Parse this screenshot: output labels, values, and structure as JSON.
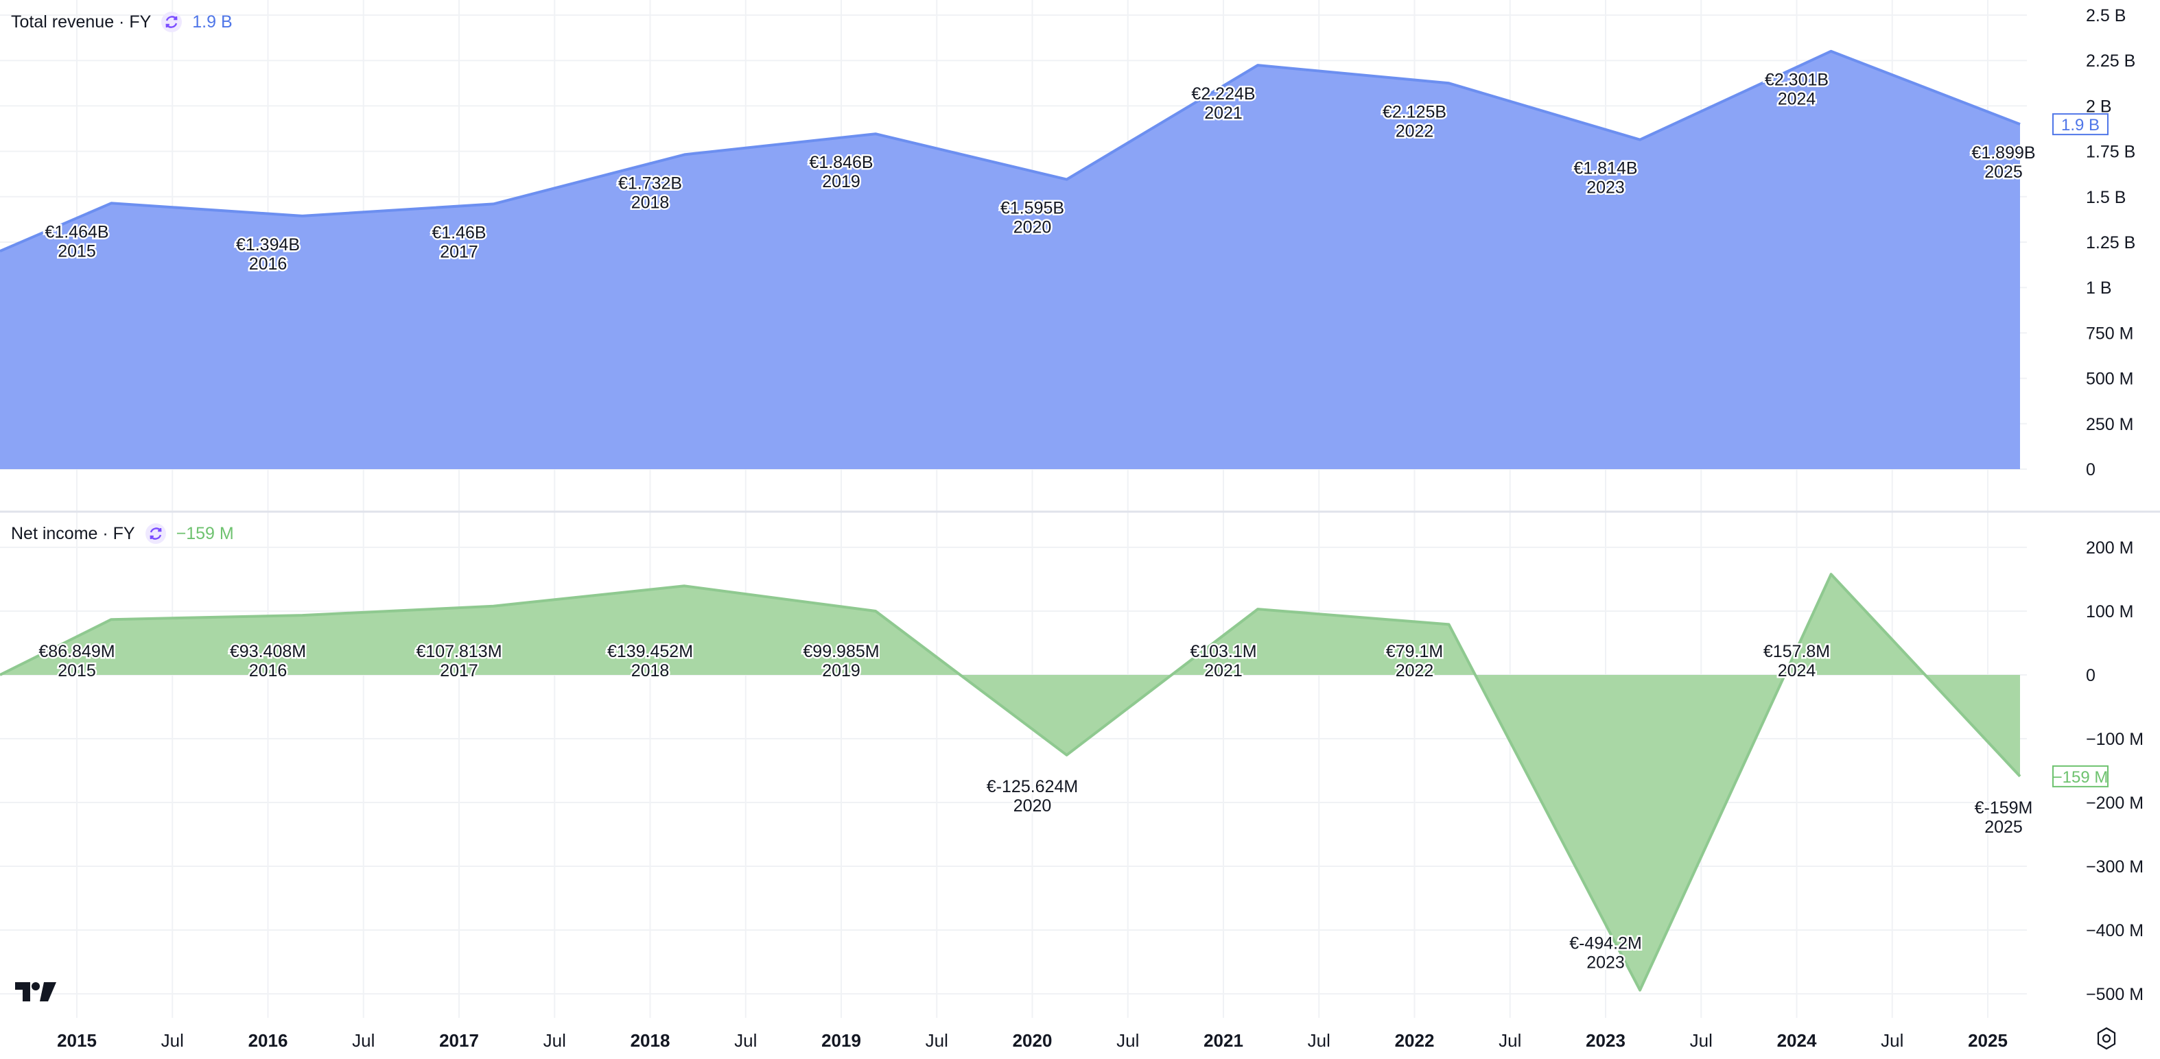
{
  "colors": {
    "revenue_line": "#6c8ff0",
    "revenue_fill": "#8ba4f6",
    "revenue_text": "#4f76e8",
    "income_line": "#8fc990",
    "income_fill": "#a9d7a5",
    "income_text": "#6ec26f",
    "grid": "#f0f2f5",
    "separator": "#e0e3eb",
    "text": "#131722"
  },
  "icons": {
    "refresh": "refresh-icon",
    "logo": "tradingview-logo-icon",
    "settings": "settings-gear-icon"
  },
  "panes": {
    "revenue": {
      "title": "Total revenue · FY",
      "value": "1.9 B",
      "axis_badge": "1.9 B"
    },
    "income": {
      "title": "Net income · FY",
      "value": "−159 M",
      "axis_badge": "−159 M"
    }
  },
  "chart_data": [
    {
      "type": "area",
      "title": "Total revenue · FY",
      "x": [
        "2015",
        "2016",
        "2017",
        "2018",
        "2019",
        "2020",
        "2021",
        "2022",
        "2023",
        "2024",
        "2025"
      ],
      "values": [
        1.464,
        1.394,
        1.46,
        1.732,
        1.846,
        1.595,
        2.224,
        2.125,
        1.814,
        2.301,
        1.899
      ],
      "units": "B EUR",
      "start_value": 1.2,
      "labels": [
        "€1.464B",
        "€1.394B",
        "€1.46B",
        "€1.732B",
        "€1.846B",
        "€1.595B",
        "€2.224B",
        "€2.125B",
        "€1.814B",
        "€2.301B",
        "€1.899B"
      ],
      "ylim": [
        0,
        2.5
      ],
      "y_ticks": [
        0,
        0.25,
        0.5,
        0.75,
        1,
        1.25,
        1.5,
        1.75,
        2,
        2.25,
        2.5
      ],
      "y_tick_labels": [
        "0",
        "250 M",
        "500 M",
        "750 M",
        "1 B",
        "1.25 B",
        "1.5 B",
        "1.75 B",
        "2 B",
        "2.25 B",
        "2.5 B"
      ]
    },
    {
      "type": "area",
      "title": "Net income · FY",
      "x": [
        "2015",
        "2016",
        "2017",
        "2018",
        "2019",
        "2020",
        "2021",
        "2022",
        "2023",
        "2024",
        "2025"
      ],
      "values": [
        86.849,
        93.408,
        107.813,
        139.452,
        99.985,
        -125.624,
        103.1,
        79.1,
        -494.2,
        157.8,
        -159
      ],
      "units": "M EUR",
      "start_value": 0,
      "labels": [
        "€86.849M",
        "€93.408M",
        "€107.813M",
        "€139.452M",
        "€99.985M",
        "€-125.624M",
        "€103.1M",
        "€79.1M",
        "€-494.2M",
        "€157.8M",
        "€-159M"
      ],
      "ylim": [
        -520,
        220
      ],
      "y_ticks": [
        200,
        100,
        0,
        -100,
        -200,
        -300,
        -400,
        -500
      ],
      "y_tick_labels": [
        "200 M",
        "100 M",
        "0",
        "−100 M",
        "−200 M",
        "−300 M",
        "−400 M",
        "−500 M"
      ]
    }
  ],
  "time_axis": {
    "labels": [
      "2015",
      "Jul",
      "2016",
      "Jul",
      "2017",
      "Jul",
      "2018",
      "Jul",
      "2019",
      "Jul",
      "2020",
      "Jul",
      "2021",
      "Jul",
      "2022",
      "Jul",
      "2023",
      "Jul",
      "2024",
      "Jul",
      "2025"
    ],
    "fiscal_year_offset": 0.5
  }
}
